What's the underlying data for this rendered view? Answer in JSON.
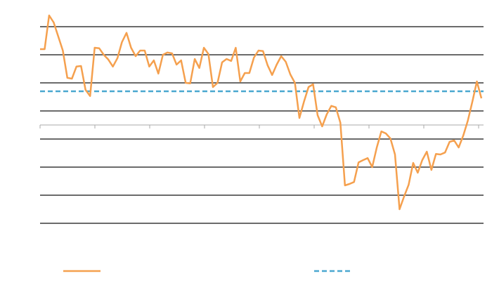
{
  "chart_data": {
    "type": "line",
    "series": [
      {
        "color": "#f5a04e",
        "values": [
          2.7,
          2.7,
          3.9,
          3.65,
          3.15,
          2.65,
          1.68,
          1.65,
          2.08,
          2.1,
          1.25,
          1.03,
          2.75,
          2.73,
          2.5,
          2.33,
          2.08,
          2.38,
          2.95,
          3.28,
          2.75,
          2.45,
          2.65,
          2.65,
          2.08,
          2.3,
          1.83,
          2.5,
          2.58,
          2.55,
          2.15,
          2.3,
          1.5,
          1.48,
          2.35,
          2.03,
          2.75,
          2.53,
          1.35,
          1.5,
          2.23,
          2.35,
          2.28,
          2.75,
          1.55,
          1.85,
          1.85,
          2.4,
          2.65,
          2.63,
          2.13,
          1.78,
          2.15,
          2.45,
          2.25,
          1.8,
          1.5,
          0.25,
          0.83,
          1.35,
          1.45,
          0.35,
          -0.05,
          0.38,
          0.68,
          0.63,
          0.08,
          -2.15,
          -2.1,
          -2.03,
          -1.33,
          -1.25,
          -1.18,
          -1.5,
          -0.8,
          -0.23,
          -0.3,
          -0.48,
          -1.05,
          -3,
          -2.55,
          -2.13,
          -1.35,
          -1.7,
          -1.25,
          -0.95,
          -1.6,
          -1.03,
          -1.05,
          -0.98,
          -0.6,
          -0.55,
          -0.8,
          -0.38,
          0.15,
          0.83,
          1.55,
          0.95
        ]
      }
    ],
    "reference_line": {
      "value": 1.2,
      "color": "#4aa8d0"
    },
    "ylim": [
      -3.5,
      4
    ],
    "yticks": [
      -3.5,
      -2.5,
      -1.5,
      -0.5,
      0.5,
      1.5,
      2.5,
      3.5
    ],
    "grid": true
  }
}
